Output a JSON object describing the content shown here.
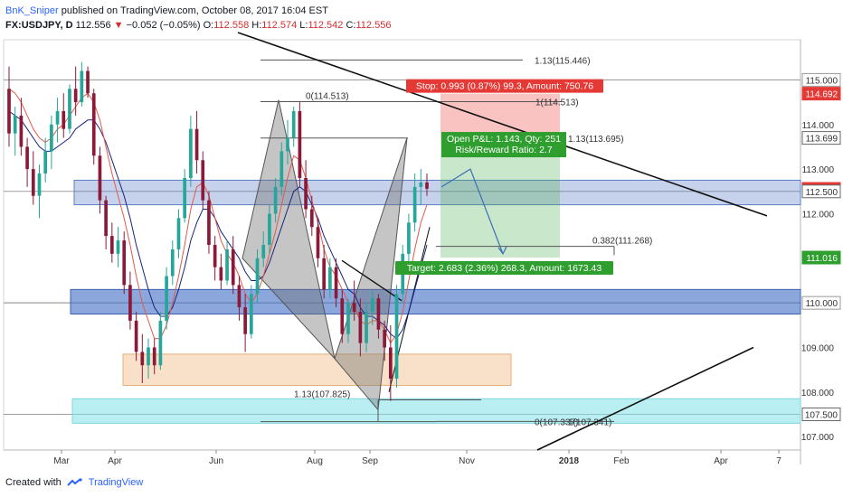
{
  "header": {
    "author": "BnK_Sniper",
    "published": "published on TradingView.com, October 08, 2017 16:04 EST",
    "symbol": "FX:USDJPY, D",
    "last": "112.556",
    "change": "−0.052 (−0.05%)",
    "o_label": "O:",
    "o_value": "112.558",
    "h_label": "H:",
    "h_value": "112.574",
    "l_label": "L:",
    "l_value": "112.542",
    "c_label": "C:",
    "c_value": "112.556"
  },
  "footer": {
    "created_with": "Created with",
    "brand": "TradingView"
  },
  "colors": {
    "up": "#26a69a",
    "down": "#8b1a3a",
    "blue_zone": "#5b7fc9",
    "cyan_zone": "#7fe0e8",
    "tan_zone": "#f2c89a",
    "stop": "#e53935",
    "target": "#2e9e2e",
    "ma_fast": "#e05a4a",
    "ma_slow": "#1a237e"
  },
  "chart_data": {
    "type": "candlestick",
    "symbol": "FX:USDJPY",
    "interval": "D",
    "ylim": [
      106.7,
      115.9
    ],
    "y_ticks": [
      107.0,
      108.0,
      109.0,
      110.0,
      111.0,
      112.0,
      113.0,
      114.0,
      115.0
    ],
    "y_tick_labels": [
      "107.000",
      "108.000",
      "109.000",
      "110.000",
      "111.000",
      "112.000",
      "113.000",
      "114.000",
      "115.000"
    ],
    "x_tick_labels": [
      "Mar",
      "Apr",
      "Jun",
      "Aug",
      "Sep",
      "Nov",
      "2018",
      "Feb",
      "Apr",
      "7"
    ],
    "x_tick_bold": [
      false,
      false,
      false,
      false,
      false,
      false,
      true,
      false,
      false,
      false
    ],
    "price_badges": [
      {
        "label": "115.000",
        "value": 115.0,
        "style": "gray"
      },
      {
        "label": "114.692",
        "value": 114.692,
        "style": "red"
      },
      {
        "label": "113.699",
        "value": 113.699,
        "style": "dark"
      },
      {
        "label": "112.556",
        "value": 112.556,
        "style": "red"
      },
      {
        "label": "112.500",
        "value": 112.5,
        "style": "dark"
      },
      {
        "label": "111.016",
        "value": 111.016,
        "style": "green"
      },
      {
        "label": "110.000",
        "value": 110.0,
        "style": "gray"
      },
      {
        "label": "107.500",
        "value": 107.5,
        "style": "dark"
      }
    ],
    "zones": [
      {
        "name": "upper-resistance-zone",
        "from": 112.2,
        "to": 112.75,
        "color": "blue"
      },
      {
        "name": "mid-support-zone",
        "from": 109.75,
        "to": 110.3,
        "color": "blue"
      },
      {
        "name": "demand-zone",
        "from": 108.15,
        "to": 108.85,
        "color": "tan"
      },
      {
        "name": "lower-zone",
        "from": 107.3,
        "to": 107.85,
        "color": "cyan"
      }
    ],
    "levels": [
      {
        "label": "1.13(115.446)",
        "value": 115.446
      },
      {
        "label": "0(114.513)",
        "value": 114.513
      },
      {
        "label": "1(114.513)",
        "value": 114.513
      },
      {
        "label": "1.13(113.695)",
        "value": 113.695
      },
      {
        "label": "0.382(111.268)",
        "value": 111.268
      },
      {
        "label": "1.13(107.825)",
        "value": 107.825
      },
      {
        "label": "0(107.337)",
        "value": 107.337
      },
      {
        "label": "1(107.341)",
        "value": 107.341
      }
    ],
    "position": {
      "stop_label": "Stop: 0.993 (0.87%) 99.3, Amount: 750.76",
      "pnl_label": "Open P&L: 1.143, Qty: 251",
      "rr_label": "Risk/Reward Ratio: 2.7",
      "target_label": "Target: 2.683 (2.36%) 268.3, Amount: 1673.43",
      "entry": 113.699,
      "stop": 114.692,
      "target": 111.016
    },
    "candles": [
      [
        114.8,
        115.3,
        113.5,
        113.8
      ],
      [
        113.8,
        114.4,
        113.3,
        114.2
      ],
      [
        114.2,
        114.6,
        113.3,
        113.5
      ],
      [
        113.5,
        113.7,
        112.6,
        113.0
      ],
      [
        113.0,
        113.4,
        112.2,
        112.4
      ],
      [
        112.4,
        113.1,
        111.9,
        112.9
      ],
      [
        112.9,
        113.7,
        112.7,
        113.4
      ],
      [
        113.4,
        114.2,
        113.0,
        114.0
      ],
      [
        114.0,
        114.6,
        113.6,
        114.3
      ],
      [
        114.3,
        114.7,
        113.7,
        113.9
      ],
      [
        113.9,
        114.9,
        113.8,
        114.8
      ],
      [
        114.8,
        115.3,
        114.2,
        114.5
      ],
      [
        114.5,
        115.4,
        114.4,
        115.2
      ],
      [
        115.2,
        115.3,
        114.6,
        114.7
      ],
      [
        114.7,
        114.8,
        113.1,
        113.3
      ],
      [
        113.3,
        113.5,
        112.0,
        112.3
      ],
      [
        112.3,
        112.4,
        111.2,
        111.5
      ],
      [
        111.5,
        111.8,
        110.9,
        111.1
      ],
      [
        111.1,
        111.7,
        110.8,
        111.4
      ],
      [
        111.4,
        111.6,
        110.2,
        110.4
      ],
      [
        110.4,
        110.7,
        109.4,
        109.6
      ],
      [
        109.6,
        109.8,
        108.7,
        108.9
      ],
      [
        108.9,
        109.3,
        108.2,
        108.6
      ],
      [
        108.6,
        109.2,
        108.3,
        109.0
      ],
      [
        109.0,
        109.2,
        108.4,
        108.6
      ],
      [
        108.6,
        109.8,
        108.5,
        109.6
      ],
      [
        109.6,
        110.8,
        109.4,
        110.6
      ],
      [
        110.6,
        111.4,
        110.4,
        111.2
      ],
      [
        111.2,
        112.1,
        111.0,
        111.9
      ],
      [
        111.9,
        113.0,
        111.8,
        112.8
      ],
      [
        112.8,
        114.2,
        112.6,
        113.9
      ],
      [
        113.9,
        114.3,
        112.9,
        113.2
      ],
      [
        113.2,
        113.4,
        112.1,
        112.3
      ],
      [
        112.3,
        112.5,
        111.1,
        111.3
      ],
      [
        111.3,
        111.5,
        110.5,
        110.8
      ],
      [
        110.8,
        111.1,
        110.3,
        110.5
      ],
      [
        110.5,
        111.4,
        110.4,
        111.2
      ],
      [
        111.2,
        111.5,
        110.2,
        110.4
      ],
      [
        110.4,
        110.6,
        109.6,
        109.9
      ],
      [
        109.9,
        110.2,
        108.9,
        109.3
      ],
      [
        109.3,
        110.4,
        109.2,
        110.2
      ],
      [
        110.2,
        111.2,
        110.0,
        111.0
      ],
      [
        111.0,
        111.6,
        110.8,
        111.3
      ],
      [
        111.3,
        112.2,
        111.1,
        112.0
      ],
      [
        112.0,
        112.8,
        111.8,
        112.6
      ],
      [
        112.6,
        113.6,
        112.4,
        113.4
      ],
      [
        113.4,
        114.1,
        113.1,
        113.7
      ],
      [
        113.7,
        114.4,
        113.5,
        114.3
      ],
      [
        114.3,
        114.5,
        112.6,
        112.8
      ],
      [
        112.8,
        113.2,
        111.9,
        112.1
      ],
      [
        112.1,
        112.4,
        111.5,
        111.7
      ],
      [
        111.7,
        111.9,
        110.8,
        111.0
      ],
      [
        111.0,
        111.3,
        110.1,
        110.3
      ],
      [
        110.3,
        111.0,
        110.1,
        110.8
      ],
      [
        110.8,
        111.0,
        109.9,
        110.1
      ],
      [
        110.1,
        110.3,
        109.1,
        109.3
      ],
      [
        109.3,
        110.1,
        109.1,
        110.0
      ],
      [
        110.0,
        110.5,
        109.6,
        109.8
      ],
      [
        109.8,
        110.1,
        108.8,
        109.1
      ],
      [
        109.1,
        110.0,
        108.9,
        109.8
      ],
      [
        109.8,
        110.3,
        109.5,
        110.1
      ],
      [
        110.1,
        110.2,
        109.2,
        109.4
      ],
      [
        109.4,
        109.6,
        108.7,
        109.0
      ],
      [
        109.0,
        109.5,
        107.8,
        108.3
      ],
      [
        108.3,
        110.4,
        108.1,
        110.2
      ],
      [
        110.2,
        111.3,
        110.0,
        111.1
      ],
      [
        111.1,
        112.0,
        110.9,
        111.8
      ],
      [
        111.8,
        112.9,
        111.6,
        112.6
      ],
      [
        112.6,
        113.0,
        112.2,
        112.7
      ],
      [
        112.7,
        112.9,
        112.4,
        112.56
      ]
    ],
    "ma_fast": [
      114.8,
      114.7,
      114.5,
      114.2,
      113.9,
      113.7,
      113.6,
      113.7,
      113.9,
      114.0,
      114.2,
      114.4,
      114.6,
      114.7,
      114.5,
      114.1,
      113.5,
      112.9,
      112.4,
      111.9,
      111.3,
      110.6,
      110.0,
      109.6,
      109.2,
      109.2,
      109.5,
      110.0,
      110.6,
      111.3,
      112.1,
      112.6,
      112.7,
      112.4,
      111.9,
      111.4,
      111.1,
      110.9,
      110.6,
      110.2,
      110.0,
      110.2,
      110.6,
      111.1,
      111.6,
      112.2,
      112.8,
      113.3,
      113.2,
      112.8,
      112.3,
      111.8,
      111.2,
      110.8,
      110.6,
      110.3,
      110.0,
      109.9,
      109.6,
      109.5,
      109.6,
      109.6,
      109.4,
      109.1,
      109.3,
      109.8,
      110.5,
      111.2,
      111.8,
      112.2
    ],
    "ma_slow": [
      114.3,
      114.2,
      114.1,
      113.9,
      113.7,
      113.5,
      113.4,
      113.4,
      113.5,
      113.6,
      113.7,
      113.9,
      114.0,
      114.1,
      114.1,
      113.9,
      113.6,
      113.2,
      112.8,
      112.4,
      111.9,
      111.3,
      110.8,
      110.3,
      109.9,
      109.7,
      109.7,
      109.9,
      110.3,
      110.8,
      111.4,
      111.8,
      112.1,
      112.1,
      111.9,
      111.6,
      111.4,
      111.2,
      111.0,
      110.7,
      110.5,
      110.5,
      110.6,
      110.9,
      111.3,
      111.7,
      112.1,
      112.5,
      112.6,
      112.5,
      112.2,
      111.9,
      111.5,
      111.2,
      110.9,
      110.6,
      110.3,
      110.2,
      109.9,
      109.7,
      109.7,
      109.6,
      109.5,
      109.3,
      109.2,
      109.4,
      109.8,
      110.3,
      110.8,
      111.3
    ]
  }
}
